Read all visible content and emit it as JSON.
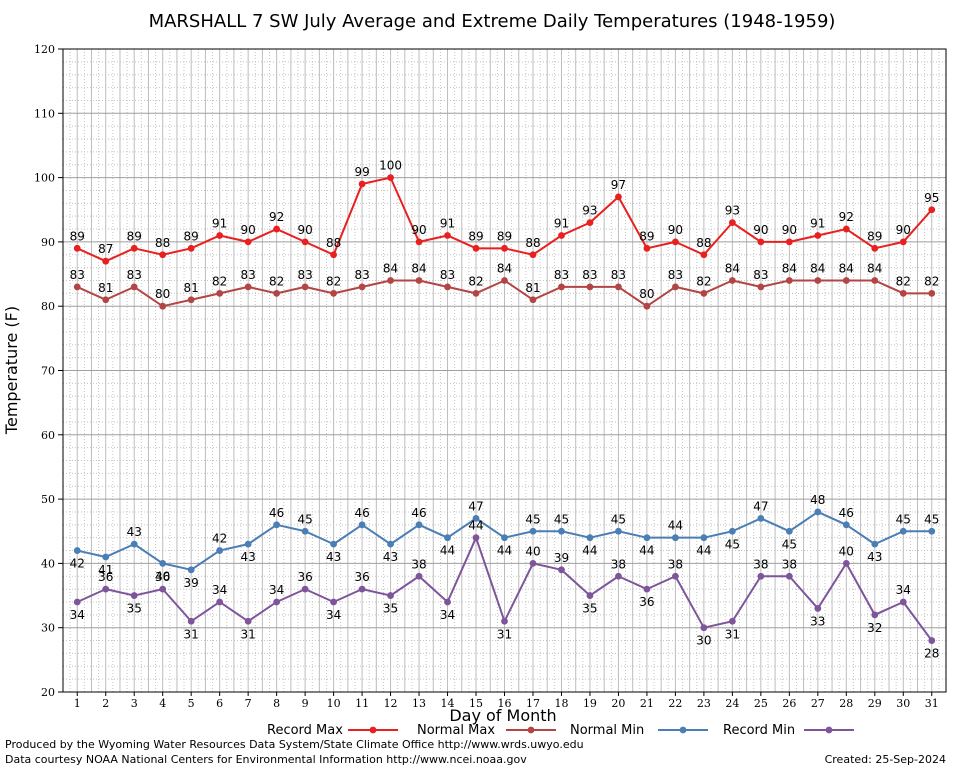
{
  "chart_data": {
    "type": "line",
    "title": "MARSHALL 7 SW July Average and Extreme Daily Temperatures (1948-1959)",
    "xlabel": "Day of Month",
    "ylabel": "Temperature (F)",
    "ylim": [
      20,
      120
    ],
    "yticks": [
      "20",
      "30",
      "40",
      "50",
      "60",
      "70",
      "80",
      "90",
      "100",
      "110",
      "120"
    ],
    "x": [
      1,
      2,
      3,
      4,
      5,
      6,
      7,
      8,
      9,
      10,
      11,
      12,
      13,
      14,
      15,
      16,
      17,
      18,
      19,
      20,
      21,
      22,
      23,
      24,
      25,
      26,
      27,
      28,
      29,
      30,
      31
    ],
    "grid": true,
    "legend_position": "bottom",
    "series": [
      {
        "name": "Record Max",
        "color": "#e8201f",
        "label_position": "above",
        "values": [
          89,
          87,
          89,
          88,
          89,
          91,
          90,
          92,
          90,
          88,
          99,
          100,
          90,
          91,
          89,
          89,
          88,
          91,
          93,
          97,
          89,
          90,
          88,
          93,
          90,
          90,
          91,
          92,
          89,
          90,
          95
        ]
      },
      {
        "name": "Normal Max",
        "color": "#b34545",
        "label_position": "above",
        "values": [
          83,
          81,
          83,
          80,
          81,
          82,
          83,
          82,
          83,
          82,
          83,
          84,
          84,
          83,
          82,
          84,
          81,
          83,
          83,
          83,
          80,
          83,
          82,
          84,
          83,
          84,
          84,
          84,
          84,
          82,
          82
        ]
      },
      {
        "name": "Normal Min",
        "color": "#4a7eb4",
        "label_position": "mixed",
        "values": [
          42,
          41,
          43,
          40,
          39,
          42,
          43,
          46,
          45,
          43,
          46,
          43,
          46,
          44,
          47,
          44,
          45,
          45,
          44,
          45,
          44,
          44,
          44,
          45,
          47,
          45,
          48,
          46,
          43,
          45,
          45
        ]
      },
      {
        "name": "Record Min",
        "color": "#7e559a",
        "label_position": "mixed",
        "values": [
          34,
          36,
          35,
          36,
          31,
          34,
          31,
          34,
          36,
          34,
          36,
          35,
          38,
          34,
          44,
          31,
          40,
          39,
          35,
          38,
          36,
          38,
          30,
          31,
          38,
          38,
          33,
          40,
          32,
          34,
          28
        ]
      }
    ]
  },
  "footer": {
    "line1": "Produced by the Wyoming Water Resources Data System/State Climate Office http://www.wrds.uwyo.edu",
    "line2": "Data courtesy NOAA National Centers for Environmental Information http://www.ncei.noaa.gov",
    "created": "Created:  25-Sep-2024"
  }
}
